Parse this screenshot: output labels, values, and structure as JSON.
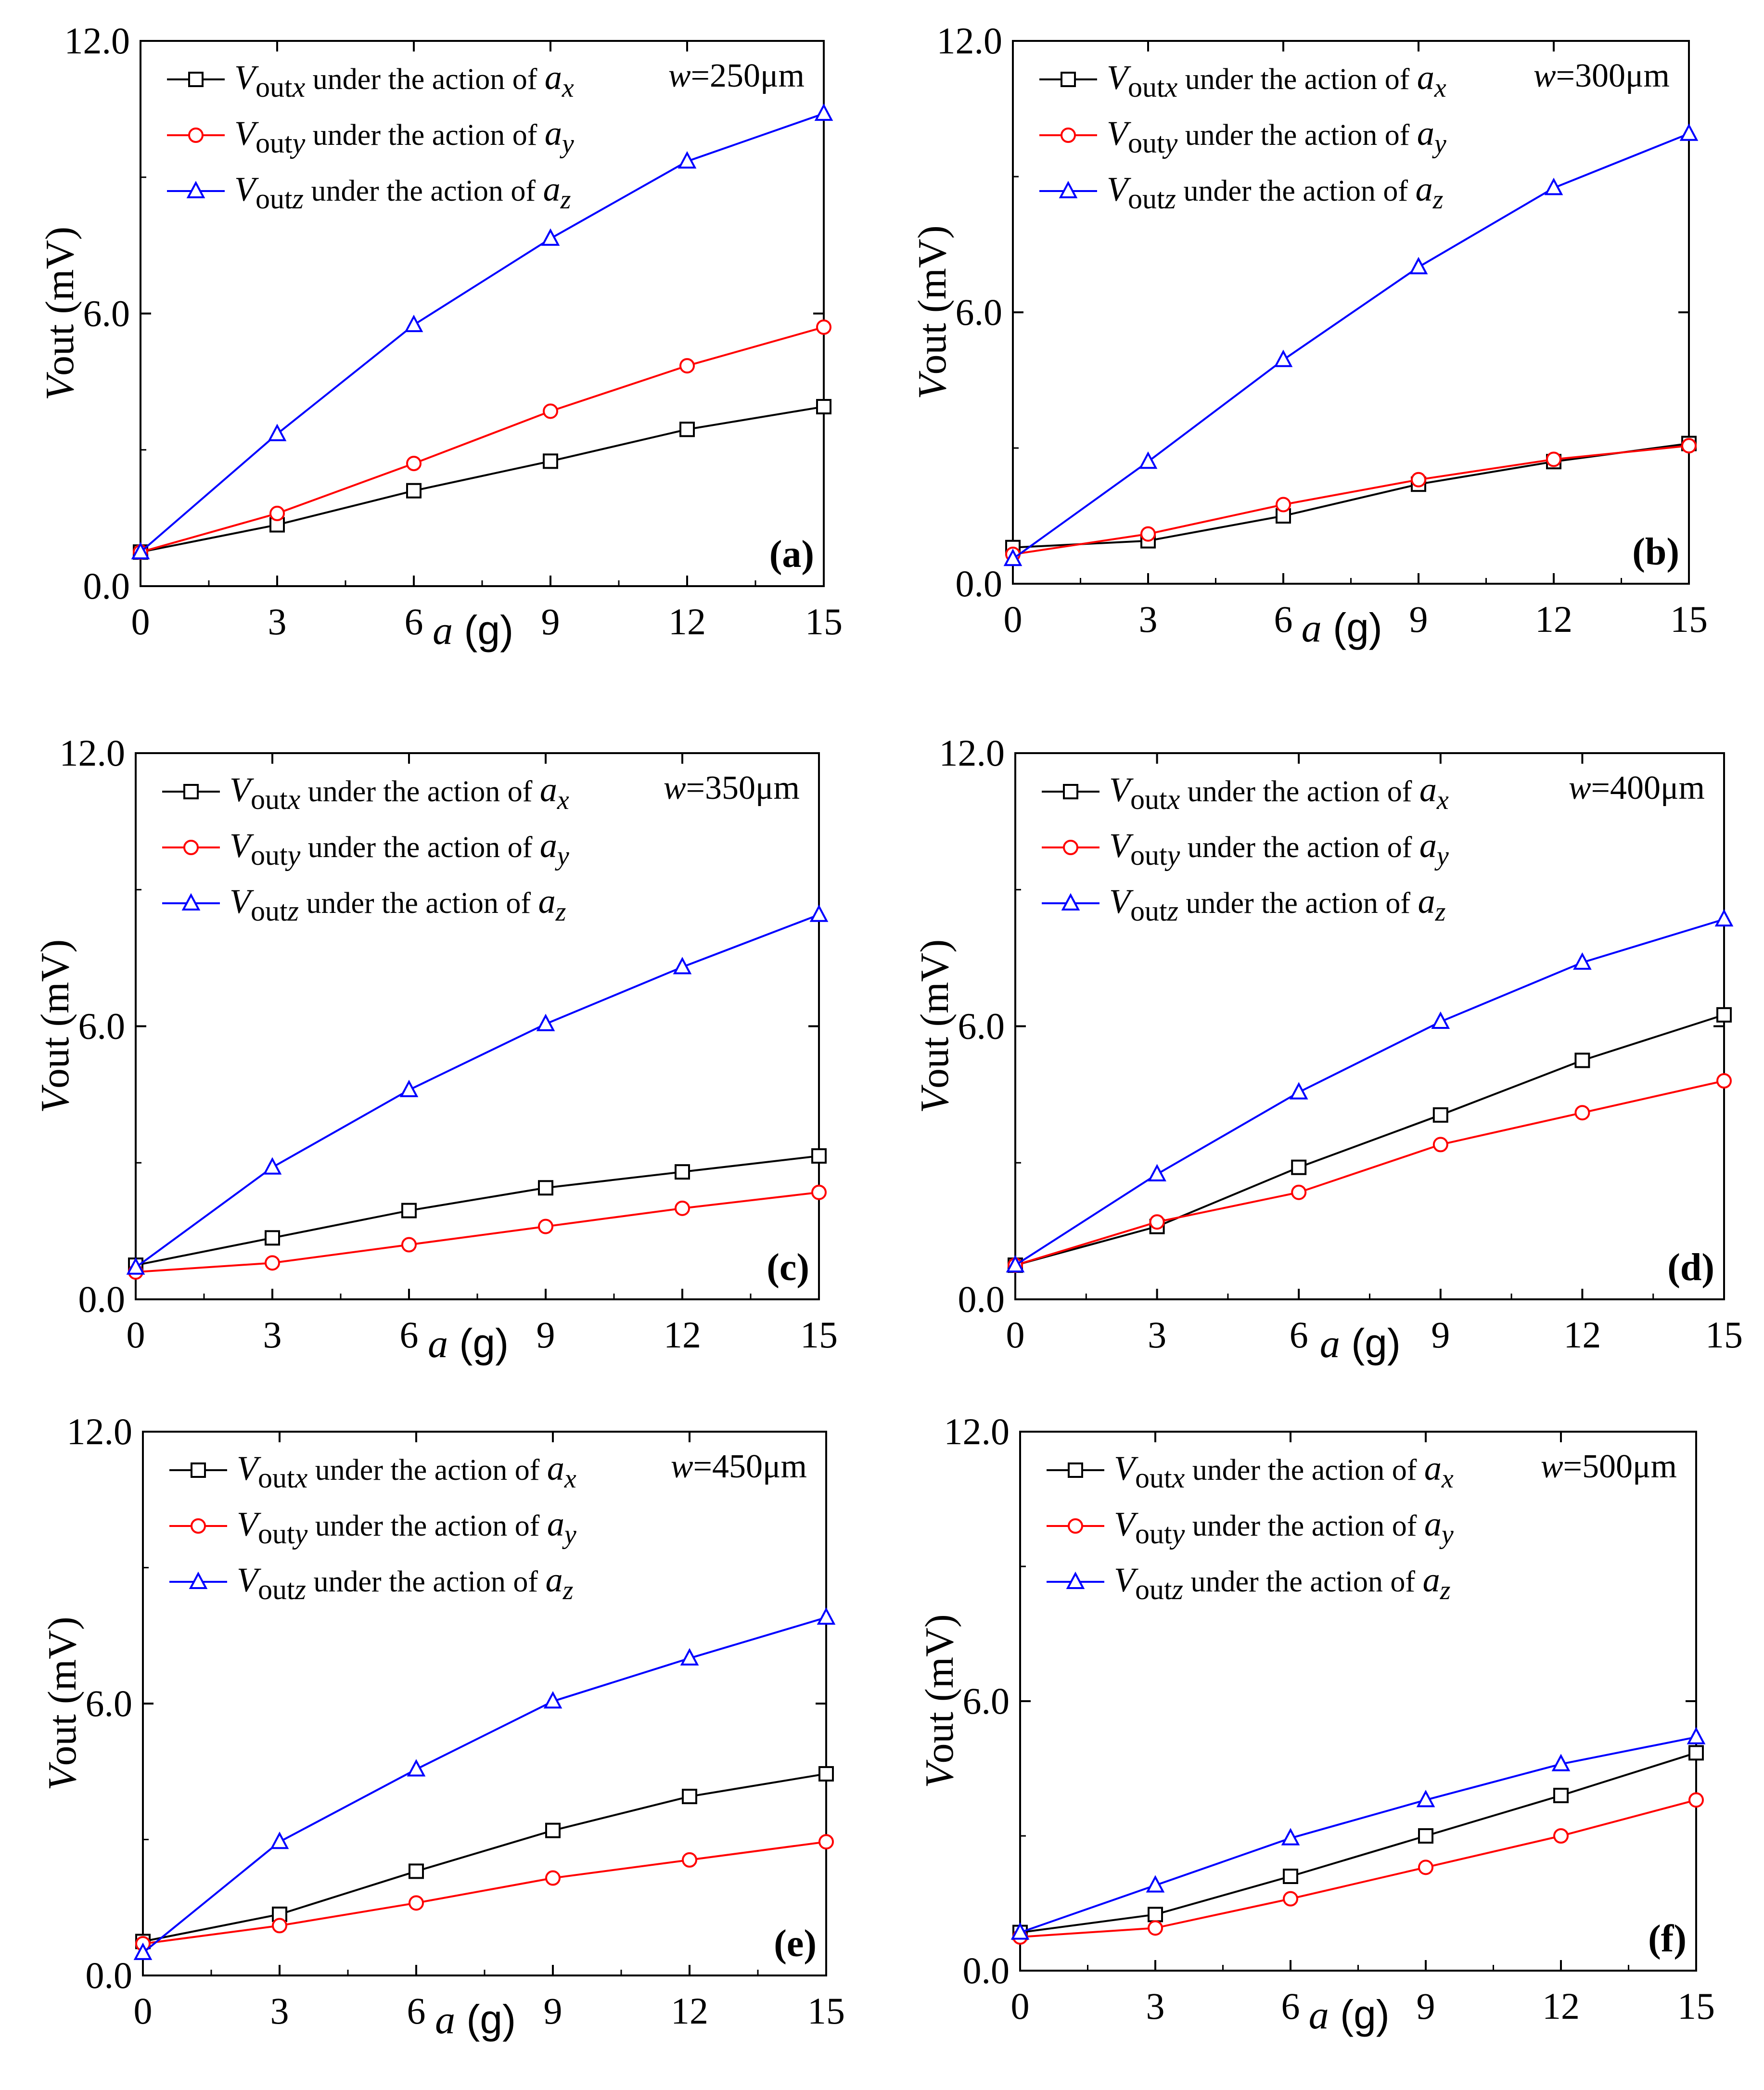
{
  "chart_data": [
    {
      "type": "line",
      "panel": "(a)",
      "annotation": "=250μm",
      "annotation_var": "w",
      "x": [
        0,
        3,
        6,
        9,
        12,
        15
      ],
      "xlim": [
        0,
        15
      ],
      "ylim": [
        0,
        12
      ],
      "xticks": [
        "0",
        "3",
        "6",
        "9",
        "12",
        "15"
      ],
      "yticks": [
        "0.0",
        "6.0",
        "12.0"
      ],
      "xlabel": "a (g)",
      "ylabel": "Vout (mV)",
      "series": [
        {
          "name": "Voutx under the action of ax",
          "color": "#000000",
          "marker": "square",
          "values": [
            0.75,
            1.35,
            2.1,
            2.75,
            3.45,
            3.95
          ]
        },
        {
          "name": "Vouty under the action of ay",
          "color": "#ff0000",
          "marker": "circle",
          "values": [
            0.75,
            1.6,
            2.7,
            3.85,
            4.85,
            5.7
          ]
        },
        {
          "name": "Voutz under the action of az",
          "color": "#0000ff",
          "marker": "triangle",
          "values": [
            0.75,
            3.35,
            5.75,
            7.65,
            9.35,
            10.4
          ]
        }
      ]
    },
    {
      "type": "line",
      "panel": "(b)",
      "annotation": "=300μm",
      "annotation_var": "w",
      "x": [
        0,
        3,
        6,
        9,
        12,
        15
      ],
      "xlim": [
        0,
        15
      ],
      "ylim": [
        0,
        12
      ],
      "xticks": [
        "0",
        "3",
        "6",
        "9",
        "12",
        "15"
      ],
      "yticks": [
        "0.0",
        "6.0",
        "12.0"
      ],
      "xlabel": "a (g)",
      "ylabel": "Vout (mV)",
      "series": [
        {
          "name": "Voutx under the action of ax",
          "color": "#000000",
          "marker": "square",
          "values": [
            0.8,
            0.95,
            1.5,
            2.2,
            2.7,
            3.1
          ]
        },
        {
          "name": "Vouty under the action of ay",
          "color": "#ff0000",
          "marker": "circle",
          "values": [
            0.65,
            1.1,
            1.75,
            2.3,
            2.75,
            3.05
          ]
        },
        {
          "name": "Voutz under the action of az",
          "color": "#0000ff",
          "marker": "triangle",
          "values": [
            0.55,
            2.7,
            4.95,
            7.0,
            8.75,
            9.95
          ]
        }
      ]
    },
    {
      "type": "line",
      "panel": "(c)",
      "annotation": "=350μm",
      "annotation_var": "w",
      "x": [
        0,
        3,
        6,
        9,
        12,
        15
      ],
      "xlim": [
        0,
        15
      ],
      "ylim": [
        0,
        12
      ],
      "xticks": [
        "0",
        "3",
        "6",
        "9",
        "12",
        "15"
      ],
      "yticks": [
        "0.0",
        "6.0",
        "12.0"
      ],
      "xlabel": "a (g)",
      "ylabel": "Vout (mV)",
      "series": [
        {
          "name": "Voutx under the action of ax",
          "color": "#000000",
          "marker": "square",
          "values": [
            0.75,
            1.35,
            1.95,
            2.45,
            2.8,
            3.15
          ]
        },
        {
          "name": "Vouty under the action of ay",
          "color": "#ff0000",
          "marker": "circle",
          "values": [
            0.6,
            0.8,
            1.2,
            1.6,
            2.0,
            2.35
          ]
        },
        {
          "name": "Voutz under the action of az",
          "color": "#0000ff",
          "marker": "triangle",
          "values": [
            0.7,
            2.9,
            4.6,
            6.05,
            7.3,
            8.45
          ]
        }
      ]
    },
    {
      "type": "line",
      "panel": "(d)",
      "annotation": "=400μm",
      "annotation_var": "w",
      "x": [
        0,
        3,
        6,
        9,
        12,
        15
      ],
      "xlim": [
        0,
        15
      ],
      "ylim": [
        0,
        12
      ],
      "xticks": [
        "0",
        "3",
        "6",
        "9",
        "12",
        "15"
      ],
      "yticks": [
        "0.0",
        "6.0",
        "12.0"
      ],
      "xlabel": "a (g)",
      "ylabel": "Vout (mV)",
      "series": [
        {
          "name": "Voutx under the action of ax",
          "color": "#000000",
          "marker": "square",
          "values": [
            0.75,
            1.6,
            2.9,
            4.05,
            5.25,
            6.25
          ]
        },
        {
          "name": "Vouty under the action of ay",
          "color": "#ff0000",
          "marker": "circle",
          "values": [
            0.75,
            1.7,
            2.35,
            3.4,
            4.1,
            4.8
          ]
        },
        {
          "name": "Voutz under the action of az",
          "color": "#0000ff",
          "marker": "triangle",
          "values": [
            0.75,
            2.75,
            4.55,
            6.1,
            7.4,
            8.35
          ]
        }
      ]
    },
    {
      "type": "line",
      "panel": "(e)",
      "annotation": "=450μm",
      "annotation_var": "w",
      "x": [
        0,
        3,
        6,
        9,
        12,
        15
      ],
      "xlim": [
        0,
        15
      ],
      "ylim": [
        0,
        12
      ],
      "xticks": [
        "0",
        "3",
        "6",
        "9",
        "12",
        "15"
      ],
      "yticks": [
        "0.0",
        "6.0",
        "12.0"
      ],
      "xlabel": "a (g)",
      "ylabel": "Vout (mV)",
      "series": [
        {
          "name": "Voutx under the action of ax",
          "color": "#000000",
          "marker": "square",
          "values": [
            0.75,
            1.35,
            2.3,
            3.2,
            3.95,
            4.45
          ]
        },
        {
          "name": "Vouty under the action of ay",
          "color": "#ff0000",
          "marker": "circle",
          "values": [
            0.7,
            1.1,
            1.6,
            2.15,
            2.55,
            2.95
          ]
        },
        {
          "name": "Voutz under the action of az",
          "color": "#0000ff",
          "marker": "triangle",
          "values": [
            0.5,
            2.95,
            4.55,
            6.05,
            7.0,
            7.9
          ]
        }
      ]
    },
    {
      "type": "line",
      "panel": "(f)",
      "annotation": "=500μm",
      "annotation_var": "w",
      "x": [
        0,
        3,
        6,
        9,
        12,
        15
      ],
      "xlim": [
        0,
        15
      ],
      "ylim": [
        0,
        12
      ],
      "xticks": [
        "0",
        "3",
        "6",
        "9",
        "12",
        "15"
      ],
      "yticks": [
        "0.0",
        "6.0",
        "12.0"
      ],
      "xlabel": "a (g)",
      "ylabel": "Vout (mV)",
      "series": [
        {
          "name": "Voutx under the action of ax",
          "color": "#000000",
          "marker": "square",
          "values": [
            0.85,
            1.25,
            2.1,
            3.0,
            3.9,
            4.85
          ]
        },
        {
          "name": "Vouty under the action of ay",
          "color": "#ff0000",
          "marker": "circle",
          "values": [
            0.75,
            0.95,
            1.6,
            2.3,
            3.0,
            3.8
          ]
        },
        {
          "name": "Voutz under the action of az",
          "color": "#0000ff",
          "marker": "triangle",
          "values": [
            0.85,
            1.9,
            2.95,
            3.8,
            4.6,
            5.2
          ]
        }
      ]
    }
  ]
}
